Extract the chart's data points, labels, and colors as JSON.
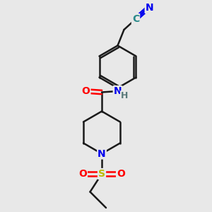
{
  "bg_color": "#e8e8e8",
  "bond_color": "#1a1a1a",
  "bond_width": 1.8,
  "atom_colors": {
    "N": "#0000ee",
    "O": "#ff0000",
    "S": "#bbbb00",
    "C_nitrile": "#2a8a8a",
    "H": "#5a7a7a"
  },
  "font_size_atoms": 10,
  "font_size_h": 9
}
